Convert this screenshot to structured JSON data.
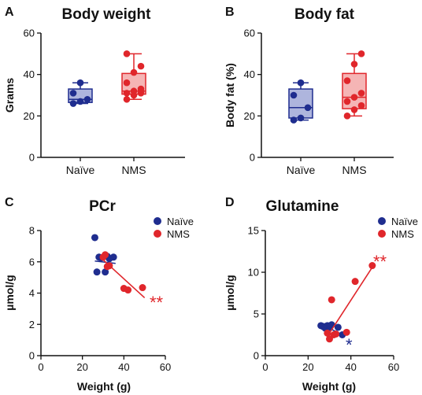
{
  "colors": {
    "naive": "#1f2d8f",
    "nms": "#e0262b",
    "naive_fill": "#aeb5dd",
    "nms_fill": "#f5b5b5",
    "axis": "#111111"
  },
  "chart_data": [
    {
      "panel": "A",
      "type": "box",
      "title": "Body weight",
      "xlabel": "",
      "ylabel": "Grams",
      "ylim": [
        0,
        60
      ],
      "yticks": [
        "0",
        "20",
        "40",
        "60"
      ],
      "categories": [
        "Naïve",
        "NMS"
      ],
      "series": [
        {
          "name": "Naïve",
          "color_key": "naive",
          "points": [
            26,
            27,
            28,
            31,
            36
          ],
          "box": {
            "min": 26,
            "q1": 26.5,
            "median": 28,
            "q3": 33,
            "max": 36
          }
        },
        {
          "name": "NMS",
          "color_key": "nms",
          "points": [
            28,
            30,
            31,
            31,
            32,
            33,
            36,
            41,
            44,
            50
          ],
          "box": {
            "min": 28,
            "q1": 30.5,
            "median": 32,
            "q3": 40.5,
            "max": 50
          }
        }
      ]
    },
    {
      "panel": "B",
      "type": "box",
      "title": "Body fat",
      "xlabel": "",
      "ylabel": "Body fat (%)",
      "ylim": [
        0,
        60
      ],
      "yticks": [
        "0",
        "20",
        "40",
        "60"
      ],
      "categories": [
        "Naïve",
        "NMS"
      ],
      "series": [
        {
          "name": "Naïve",
          "color_key": "naive",
          "points": [
            18,
            19,
            24,
            30,
            36
          ],
          "box": {
            "min": 18,
            "q1": 19,
            "median": 24,
            "q3": 33,
            "max": 36
          }
        },
        {
          "name": "NMS",
          "color_key": "nms",
          "points": [
            20,
            23,
            25,
            27,
            29,
            31,
            37,
            45,
            50
          ],
          "box": {
            "min": 20,
            "q1": 23.5,
            "median": 29,
            "q3": 40.5,
            "max": 50
          }
        }
      ]
    },
    {
      "panel": "C",
      "type": "scatter",
      "title": "PCr",
      "xlabel": "Weight (g)",
      "ylabel": "µmol/g",
      "xlim": [
        0,
        60
      ],
      "ylim": [
        0,
        8
      ],
      "xticks": [
        "0",
        "20",
        "40",
        "60"
      ],
      "yticks": [
        "0",
        "2",
        "4",
        "6",
        "8"
      ],
      "legend": [
        "Naïve",
        "NMS"
      ],
      "legend_position": "top-right",
      "annotation": "**",
      "annotation_color_key": "nms",
      "series": [
        {
          "name": "Naïve",
          "color_key": "naive",
          "x": [
            26,
            27,
            28,
            29,
            31,
            32,
            33,
            35
          ],
          "y": [
            7.55,
            5.35,
            6.3,
            6.25,
            5.35,
            6.35,
            6.2,
            6.3
          ],
          "fit": [
            [
              26,
              6.05
            ],
            [
              36,
              5.9
            ]
          ]
        },
        {
          "name": "NMS",
          "color_key": "nms",
          "x": [
            30,
            31,
            32,
            33,
            40,
            42,
            49
          ],
          "y": [
            6.3,
            6.45,
            5.7,
            5.75,
            4.3,
            4.2,
            4.35
          ],
          "fit": [
            [
              29,
              6.25
            ],
            [
              50,
              3.7
            ]
          ]
        }
      ]
    },
    {
      "panel": "D",
      "type": "scatter",
      "title": "Glutamine",
      "xlabel": "Weight (g)",
      "ylabel": "µmol/g",
      "xlim": [
        0,
        60
      ],
      "ylim": [
        0,
        15
      ],
      "xticks": [
        "0",
        "20",
        "40",
        "60"
      ],
      "yticks": [
        "0",
        "5",
        "10",
        "15"
      ],
      "legend": [
        "Naïve",
        "NMS"
      ],
      "legend_position": "top-right",
      "annotations": [
        {
          "text": "**",
          "color_key": "nms"
        },
        {
          "text": "*",
          "color_key": "naive"
        }
      ],
      "series": [
        {
          "name": "Naïve",
          "color_key": "naive",
          "x": [
            26,
            27,
            28,
            29,
            30,
            31,
            34,
            36
          ],
          "y": [
            3.6,
            3.5,
            3.3,
            3.6,
            3.4,
            3.7,
            3.4,
            2.5
          ],
          "fit": [
            [
              26,
              3.8
            ],
            [
              36,
              2.5
            ]
          ]
        },
        {
          "name": "NMS",
          "color_key": "nms",
          "x": [
            29,
            30,
            31,
            32,
            33,
            38,
            42,
            50
          ],
          "y": [
            2.7,
            2.0,
            6.7,
            2.5,
            2.6,
            2.8,
            8.9,
            10.8
          ],
          "fit": [
            [
              29,
              2.3
            ],
            [
              50,
              10.6
            ]
          ]
        }
      ]
    }
  ]
}
